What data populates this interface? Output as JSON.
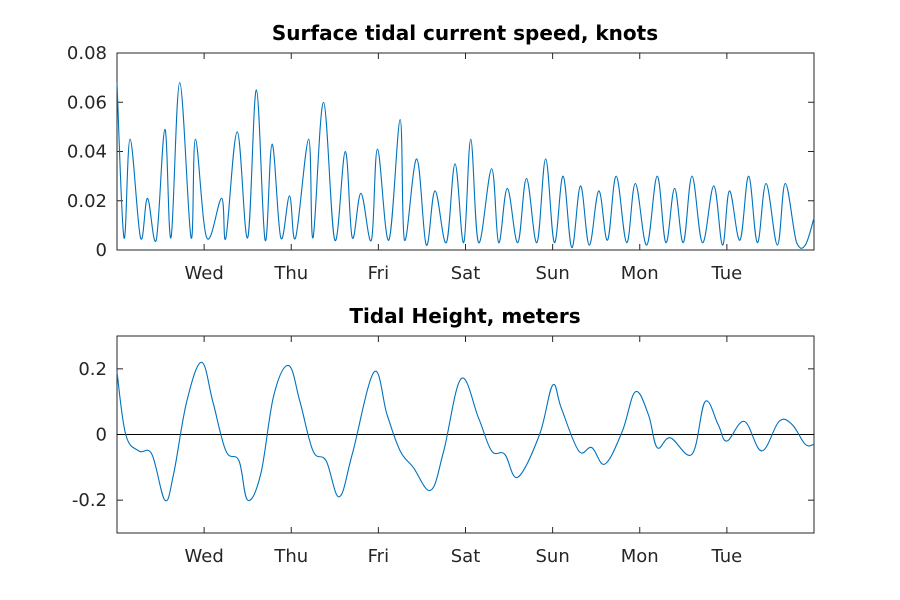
{
  "figure": {
    "background": "#ffffff",
    "line_color": "#0072bd",
    "zero_line_color": "#000000"
  },
  "chart_data": [
    {
      "type": "line",
      "title": "Surface tidal current speed, knots",
      "xlabel": "",
      "ylabel": "",
      "categories": [
        "Wed",
        "Thu",
        "Fri",
        "Sat",
        "Sun",
        "Mon",
        "Tue"
      ],
      "xlim": [
        0,
        8
      ],
      "ylim": [
        0,
        0.08
      ],
      "yticks": [
        0,
        0.02,
        0.04,
        0.06,
        0.08
      ],
      "ytick_labels": [
        "0",
        "0.02",
        "0.04",
        "0.06",
        "0.08"
      ],
      "grid": false,
      "series": [
        {
          "x": [
            0.0,
            0.08,
            0.15,
            0.27,
            0.35,
            0.45,
            0.55,
            0.62,
            0.72,
            0.85,
            0.9,
            1.03,
            1.2,
            1.25,
            1.38,
            1.5,
            1.6,
            1.7,
            1.78,
            1.88,
            1.98,
            2.05,
            2.2,
            2.25,
            2.37,
            2.5,
            2.62,
            2.7,
            2.8,
            2.92,
            2.99,
            3.12,
            3.25,
            3.3,
            3.44,
            3.55,
            3.65,
            3.78,
            3.88,
            3.98,
            4.06,
            4.15,
            4.3,
            4.38,
            4.48,
            4.6,
            4.7,
            4.82,
            4.92,
            5.02,
            5.12,
            5.22,
            5.32,
            5.42,
            5.53,
            5.63,
            5.73,
            5.85,
            5.95,
            6.08,
            6.2,
            6.3,
            6.4,
            6.5,
            6.6,
            6.72,
            6.85,
            6.95,
            7.03,
            7.15,
            7.25,
            7.35,
            7.45,
            7.58,
            7.67,
            7.8,
            7.9,
            8.0
          ],
          "y": [
            0.068,
            0.005,
            0.045,
            0.005,
            0.021,
            0.004,
            0.049,
            0.005,
            0.068,
            0.005,
            0.045,
            0.005,
            0.021,
            0.005,
            0.048,
            0.005,
            0.065,
            0.004,
            0.043,
            0.005,
            0.022,
            0.005,
            0.045,
            0.005,
            0.06,
            0.004,
            0.04,
            0.005,
            0.023,
            0.004,
            0.041,
            0.004,
            0.053,
            0.004,
            0.037,
            0.002,
            0.024,
            0.003,
            0.035,
            0.003,
            0.045,
            0.003,
            0.033,
            0.003,
            0.025,
            0.003,
            0.029,
            0.003,
            0.037,
            0.003,
            0.03,
            0.001,
            0.026,
            0.002,
            0.024,
            0.004,
            0.03,
            0.003,
            0.027,
            0.002,
            0.03,
            0.003,
            0.025,
            0.003,
            0.03,
            0.003,
            0.026,
            0.002,
            0.024,
            0.004,
            0.03,
            0.003,
            0.027,
            0.002,
            0.027,
            0.003,
            0.002,
            0.013
          ]
        }
      ]
    },
    {
      "type": "line",
      "title": "Tidal Height, meters",
      "xlabel": "",
      "ylabel": "",
      "categories": [
        "Wed",
        "Thu",
        "Fri",
        "Sat",
        "Sun",
        "Mon",
        "Tue"
      ],
      "xlim": [
        0,
        8
      ],
      "ylim": [
        -0.3,
        0.3
      ],
      "yticks": [
        -0.2,
        0,
        0.2
      ],
      "ytick_labels": [
        "-0.2",
        "0",
        "0.2"
      ],
      "grid": false,
      "reference_line": 0,
      "series": [
        {
          "x": [
            0.0,
            0.1,
            0.25,
            0.4,
            0.55,
            0.65,
            0.8,
            0.97,
            1.1,
            1.25,
            1.4,
            1.5,
            1.65,
            1.8,
            1.97,
            2.1,
            2.25,
            2.4,
            2.55,
            2.7,
            2.95,
            3.1,
            3.25,
            3.4,
            3.6,
            3.75,
            3.95,
            4.15,
            4.3,
            4.45,
            4.6,
            4.85,
            5.0,
            5.1,
            5.3,
            5.45,
            5.6,
            5.8,
            5.95,
            6.1,
            6.2,
            6.35,
            6.6,
            6.75,
            6.9,
            7.0,
            7.2,
            7.4,
            7.6,
            7.75,
            7.9,
            8.0
          ],
          "y": [
            0.19,
            0.0,
            -0.05,
            -0.06,
            -0.2,
            -0.12,
            0.1,
            0.22,
            0.1,
            -0.05,
            -0.08,
            -0.2,
            -0.12,
            0.12,
            0.21,
            0.1,
            -0.05,
            -0.08,
            -0.19,
            -0.06,
            0.19,
            0.06,
            -0.05,
            -0.1,
            -0.17,
            -0.05,
            0.17,
            0.05,
            -0.05,
            -0.06,
            -0.13,
            0.0,
            0.15,
            0.08,
            -0.05,
            -0.04,
            -0.09,
            0.01,
            0.13,
            0.06,
            -0.04,
            -0.01,
            -0.06,
            0.1,
            0.03,
            -0.02,
            0.04,
            -0.05,
            0.04,
            0.03,
            -0.03,
            -0.03
          ]
        }
      ]
    }
  ]
}
